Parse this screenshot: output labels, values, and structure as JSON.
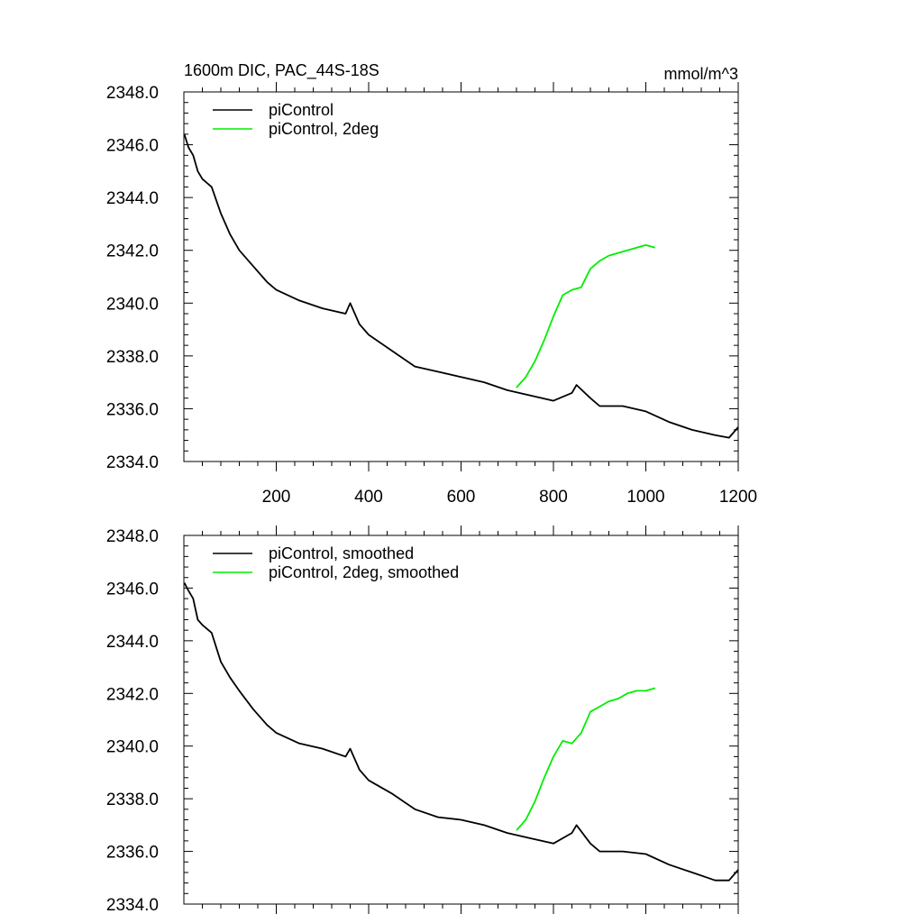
{
  "chart_data": [
    {
      "type": "line",
      "title": "1600m DIC, PAC_44S-18S",
      "units": "mmol/m^3",
      "xlabel": "",
      "ylabel": "",
      "xlim": [
        0,
        1200
      ],
      "ylim": [
        2334.0,
        2348.0
      ],
      "x_ticks": [
        200,
        400,
        600,
        800,
        1000,
        1200
      ],
      "x_tick_labels": [
        "200",
        "400",
        "600",
        "800",
        "1000",
        "1200"
      ],
      "y_ticks": [
        2334.0,
        2336.0,
        2338.0,
        2340.0,
        2342.0,
        2344.0,
        2346.0,
        2348.0
      ],
      "y_tick_labels": [
        "2334.0",
        "2336.0",
        "2338.0",
        "2340.0",
        "2342.0",
        "2344.0",
        "2346.0",
        "2348.0"
      ],
      "legend_position": "top-left",
      "grid": false,
      "series": [
        {
          "name": "piControl",
          "color": "#000000",
          "x": [
            1,
            10,
            20,
            30,
            40,
            60,
            80,
            100,
            120,
            150,
            180,
            200,
            250,
            300,
            350,
            360,
            380,
            400,
            450,
            500,
            550,
            600,
            650,
            700,
            750,
            800,
            840,
            850,
            880,
            900,
            950,
            1000,
            1050,
            1100,
            1150,
            1180,
            1200
          ],
          "y": [
            2346.4,
            2345.9,
            2345.6,
            2345.0,
            2344.7,
            2344.4,
            2343.4,
            2342.6,
            2342.0,
            2341.4,
            2340.8,
            2340.5,
            2340.1,
            2339.8,
            2339.6,
            2340.0,
            2339.2,
            2338.8,
            2338.2,
            2337.6,
            2337.4,
            2337.2,
            2337.0,
            2336.7,
            2336.5,
            2336.3,
            2336.6,
            2336.9,
            2336.4,
            2336.1,
            2336.1,
            2335.9,
            2335.5,
            2335.2,
            2335.0,
            2334.9,
            2335.3
          ]
        },
        {
          "name": "piControl, 2deg",
          "color": "#00ee00",
          "x": [
            720,
            740,
            760,
            780,
            800,
            820,
            840,
            860,
            880,
            900,
            920,
            940,
            960,
            980,
            1000,
            1020
          ],
          "y": [
            2336.8,
            2337.2,
            2337.8,
            2338.6,
            2339.5,
            2340.3,
            2340.5,
            2340.6,
            2341.3,
            2341.6,
            2341.8,
            2341.9,
            2342.0,
            2342.1,
            2342.2,
            2342.1
          ]
        }
      ]
    },
    {
      "type": "line",
      "title": "",
      "units": "",
      "xlabel": "",
      "ylabel": "",
      "xlim": [
        0,
        1200
      ],
      "ylim": [
        2334.0,
        2348.0
      ],
      "x_ticks": [
        200,
        400,
        600,
        800,
        1000,
        1200
      ],
      "x_tick_labels": [],
      "y_ticks": [
        2334.0,
        2336.0,
        2338.0,
        2340.0,
        2342.0,
        2344.0,
        2346.0,
        2348.0
      ],
      "y_tick_labels": [
        "2334.0",
        "2336.0",
        "2338.0",
        "2340.0",
        "2342.0",
        "2344.0",
        "2346.0",
        "2348.0"
      ],
      "legend_position": "top-left",
      "grid": false,
      "series": [
        {
          "name": "piControl, smoothed",
          "color": "#000000",
          "x": [
            1,
            10,
            20,
            30,
            40,
            60,
            80,
            100,
            120,
            150,
            180,
            200,
            250,
            300,
            350,
            360,
            380,
            400,
            450,
            500,
            550,
            600,
            650,
            700,
            750,
            800,
            840,
            850,
            880,
            900,
            950,
            1000,
            1050,
            1100,
            1150,
            1180,
            1200
          ],
          "y": [
            2346.2,
            2345.9,
            2345.6,
            2344.8,
            2344.6,
            2344.3,
            2343.2,
            2342.6,
            2342.1,
            2341.4,
            2340.8,
            2340.5,
            2340.1,
            2339.9,
            2339.6,
            2339.9,
            2339.1,
            2338.7,
            2338.2,
            2337.6,
            2337.3,
            2337.2,
            2337.0,
            2336.7,
            2336.5,
            2336.3,
            2336.7,
            2337.0,
            2336.3,
            2336.0,
            2336.0,
            2335.9,
            2335.5,
            2335.2,
            2334.9,
            2334.9,
            2335.3
          ]
        },
        {
          "name": "piControl, 2deg, smoothed",
          "color": "#00ee00",
          "x": [
            720,
            740,
            760,
            780,
            800,
            820,
            840,
            860,
            880,
            900,
            920,
            940,
            960,
            980,
            1000,
            1020
          ],
          "y": [
            2336.8,
            2337.2,
            2337.9,
            2338.8,
            2339.6,
            2340.2,
            2340.1,
            2340.5,
            2341.3,
            2341.5,
            2341.7,
            2341.8,
            2342.0,
            2342.1,
            2342.1,
            2342.2
          ]
        }
      ]
    }
  ]
}
